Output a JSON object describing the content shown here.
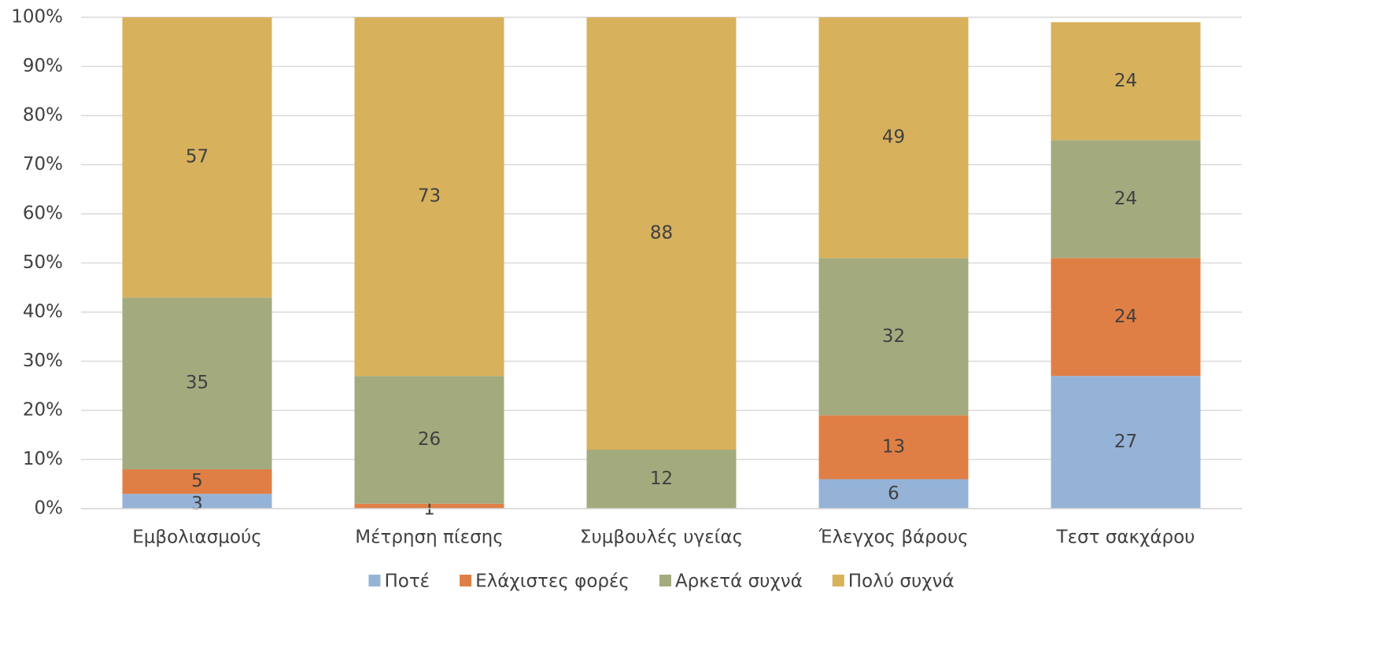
{
  "chart_data": {
    "type": "stacked_bar",
    "categories": [
      "Εμβολιασμούς",
      "Μέτρηση πίεσης",
      "Συμβουλές υγείας",
      "Έλεγχος βάρους",
      "Τεστ σακχάρου"
    ],
    "series": [
      {
        "name": "Ποτέ",
        "color": "#95b3d7",
        "values": [
          3,
          0,
          0,
          6,
          27
        ]
      },
      {
        "name": "Ελάχιστες φορές",
        "color": "#e07f45",
        "values": [
          5,
          1,
          0,
          13,
          24
        ]
      },
      {
        "name": "Αρκετά συχνά",
        "color": "#a3ab7e",
        "values": [
          35,
          26,
          12,
          32,
          24
        ]
      },
      {
        "name": "Πολύ συχνά",
        "color": "#d8b15c",
        "values": [
          57,
          73,
          88,
          49,
          24
        ]
      }
    ],
    "ylim": [
      0,
      100
    ],
    "yticks": [
      {
        "value": 0,
        "label": "0%"
      },
      {
        "value": 10,
        "label": "10%"
      },
      {
        "value": 20,
        "label": "20%"
      },
      {
        "value": 30,
        "label": "30%"
      },
      {
        "value": 40,
        "label": "40%"
      },
      {
        "value": 50,
        "label": "50%"
      },
      {
        "value": 60,
        "label": "60%"
      },
      {
        "value": 70,
        "label": "70%"
      },
      {
        "value": 80,
        "label": "80%"
      },
      {
        "value": 90,
        "label": "90%"
      },
      {
        "value": 100,
        "label": "100%"
      }
    ],
    "grid": true,
    "legend": "bottom"
  }
}
